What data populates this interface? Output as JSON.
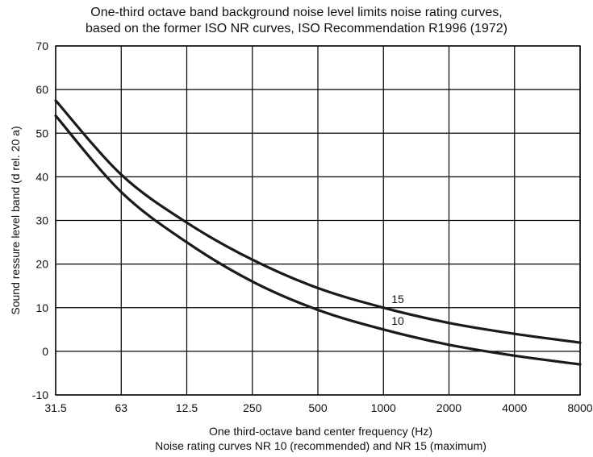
{
  "chart_data": {
    "type": "line",
    "title": "One-third octave band background noise level limits noise rating curves,",
    "subtitle": "based on the former ISO NR curves, ISO Recommendation R1996 (1972)",
    "xlabel": "One third-octave band center frequency (Hz)",
    "xlabel2": "Noise rating curves NR 10 (recommended) and NR 15 (maximum)",
    "ylabel": "Sound  ressure level band (d  rel. 20   a)",
    "categories": [
      "31.5",
      "63",
      "12.5",
      "250",
      "500",
      "1000",
      "2000",
      "4000",
      "8000"
    ],
    "x": [
      31.5,
      63,
      125,
      250,
      500,
      1000,
      2000,
      4000,
      8000
    ],
    "xscale": "log",
    "ylim": [
      -10,
      70
    ],
    "yticks": [
      -10,
      0,
      10,
      20,
      30,
      40,
      50,
      60,
      70
    ],
    "grid": true,
    "series": [
      {
        "name": "15",
        "values": [
          57.5,
          40.5,
          29.5,
          21,
          14.5,
          10,
          6.5,
          4,
          2
        ]
      },
      {
        "name": "10",
        "values": [
          54,
          36.5,
          25,
          16,
          9.5,
          5,
          1.5,
          -1,
          -3
        ]
      }
    ]
  }
}
